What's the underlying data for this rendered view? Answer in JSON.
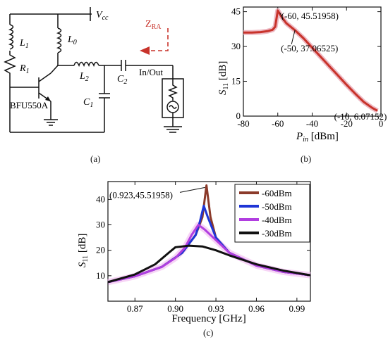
{
  "circuit": {
    "vcc": "V",
    "vcc_sub": "cc",
    "l1": "L",
    "l1_sub": "1",
    "r1": "R",
    "r1_sub": "1",
    "l0": "L",
    "l0_sub": "0",
    "l2": "L",
    "l2_sub": "2",
    "c2": "C",
    "c2_sub": "2",
    "c1": "C",
    "c1_sub": "1",
    "transistor": "BFU550A",
    "port": "In/Out",
    "zra": "Z",
    "zra_sub": "RA",
    "accent": "#c8332b"
  },
  "captions": {
    "a": "(a)",
    "b": "(b)",
    "c": "(c)"
  },
  "chart_data": [
    {
      "type": "line",
      "panel": "b",
      "xlabel_main": "P",
      "xlabel_sub": "in",
      "xlabel_unit": " [dBm]",
      "ylabel_main": "S",
      "ylabel_sub": "11",
      "ylabel_unit": " [dB]",
      "xlim": [
        -80,
        0
      ],
      "ylim": [
        0,
        47
      ],
      "xticks": [
        -80,
        -60,
        -40,
        -20,
        0
      ],
      "yticks": [
        0,
        15,
        30,
        45
      ],
      "series": [
        {
          "color": "#c8332b",
          "x": [
            -80,
            -75,
            -70,
            -66,
            -63,
            -61.5,
            -60,
            -58,
            -55,
            -50,
            -45,
            -40,
            -35,
            -30,
            -25,
            -20,
            -15,
            -10,
            -5,
            -2
          ],
          "y": [
            36,
            36,
            36.2,
            36.6,
            37.2,
            38.5,
            45.5,
            43,
            40,
            37,
            33.5,
            29.5,
            25.5,
            21.5,
            17.5,
            13.5,
            9.7,
            6.1,
            3.5,
            2.3
          ]
        }
      ],
      "annotations": [
        {
          "text": "(-60, 45.51958)",
          "x": -60,
          "y": 45.51958
        },
        {
          "text": "(-50, 37.06525)",
          "x": -50,
          "y": 37.06525
        },
        {
          "text": "(-10, 6.07152)",
          "x": -10,
          "y": 6.07152
        }
      ]
    },
    {
      "type": "line",
      "panel": "c",
      "xlabel": "Frequency [GHz]",
      "ylabel_main": "S",
      "ylabel_sub": "11",
      "ylabel_unit": " [dB]",
      "xlim": [
        0.85,
        1.0
      ],
      "ylim": [
        0,
        47
      ],
      "xticks": [
        0.87,
        0.9,
        0.93,
        0.96,
        0.99
      ],
      "yticks": [
        10,
        20,
        30,
        40
      ],
      "legend": "top-right",
      "series": [
        {
          "name": "-60dBm",
          "color": "#8b3a2a",
          "x": [
            0.85,
            0.87,
            0.89,
            0.905,
            0.915,
            0.92,
            0.923,
            0.926,
            0.93,
            0.94,
            0.96,
            0.98,
            1.0
          ],
          "y": [
            7.5,
            9.8,
            13.5,
            19,
            26,
            33,
            45.5,
            33,
            25,
            19,
            14,
            11.5,
            10.2
          ]
        },
        {
          "name": "-50dBm",
          "color": "#1f35d6",
          "x": [
            0.85,
            0.87,
            0.89,
            0.905,
            0.915,
            0.918,
            0.921,
            0.924,
            0.93,
            0.94,
            0.96,
            0.98,
            1.0
          ],
          "y": [
            7.5,
            9.8,
            13.5,
            19,
            26,
            31,
            37.5,
            33,
            25,
            19,
            14,
            11.5,
            10.2
          ]
        },
        {
          "name": "-40dBm",
          "color": "#b13ee0",
          "x": [
            0.85,
            0.87,
            0.89,
            0.9,
            0.907,
            0.912,
            0.917,
            0.922,
            0.93,
            0.94,
            0.96,
            0.98,
            1.0
          ],
          "y": [
            7.5,
            9.8,
            13.5,
            17,
            21,
            26,
            30,
            28,
            24,
            19,
            14,
            11.5,
            10.2
          ]
        },
        {
          "name": "-30dBm",
          "color": "#111111",
          "x": [
            0.85,
            0.87,
            0.885,
            0.895,
            0.9,
            0.91,
            0.92,
            0.93,
            0.94,
            0.96,
            0.98,
            1.0
          ],
          "y": [
            7.5,
            10.5,
            14.5,
            19,
            21.2,
            21.8,
            21.5,
            20,
            18,
            14.5,
            12,
            10.2
          ]
        }
      ],
      "annotations": [
        {
          "text": "(0.923,45.51958)",
          "x": 0.923,
          "y": 45.51958
        }
      ]
    }
  ]
}
